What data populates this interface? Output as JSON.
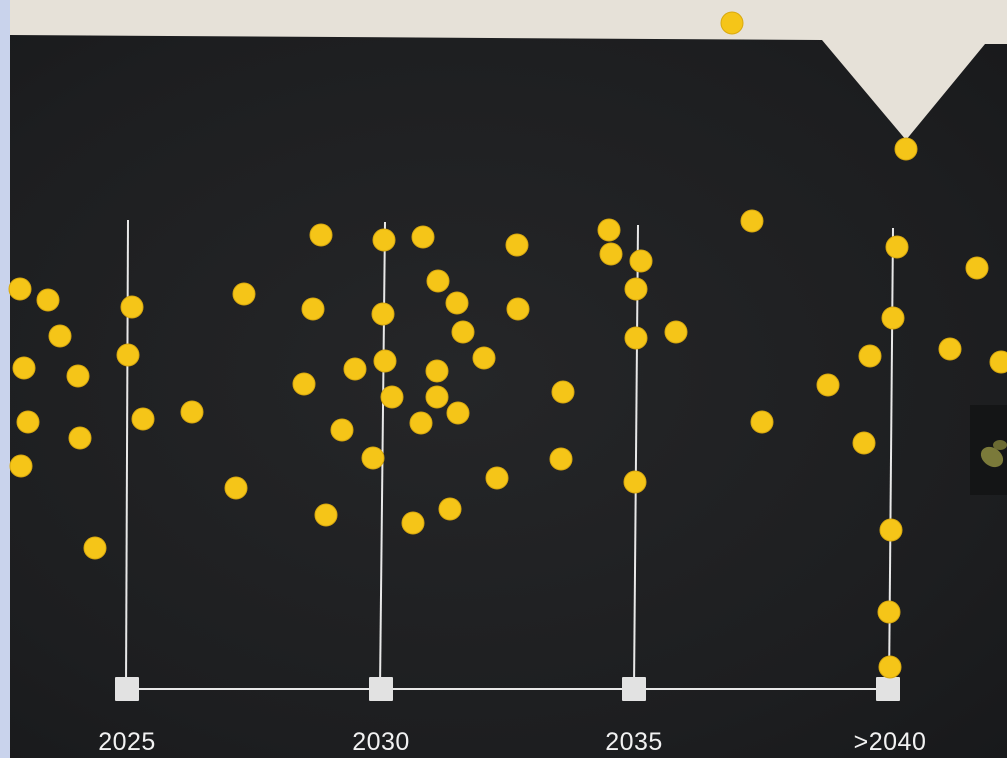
{
  "timeline": {
    "labels": [
      "2025",
      "2030",
      "2035",
      ">2040"
    ]
  },
  "colors": {
    "wall": "#1f2022",
    "banner": "#e6e1d8",
    "dot": "#f5c518",
    "axis": "#e8e8e8",
    "frame": "#c9d3ec"
  }
}
